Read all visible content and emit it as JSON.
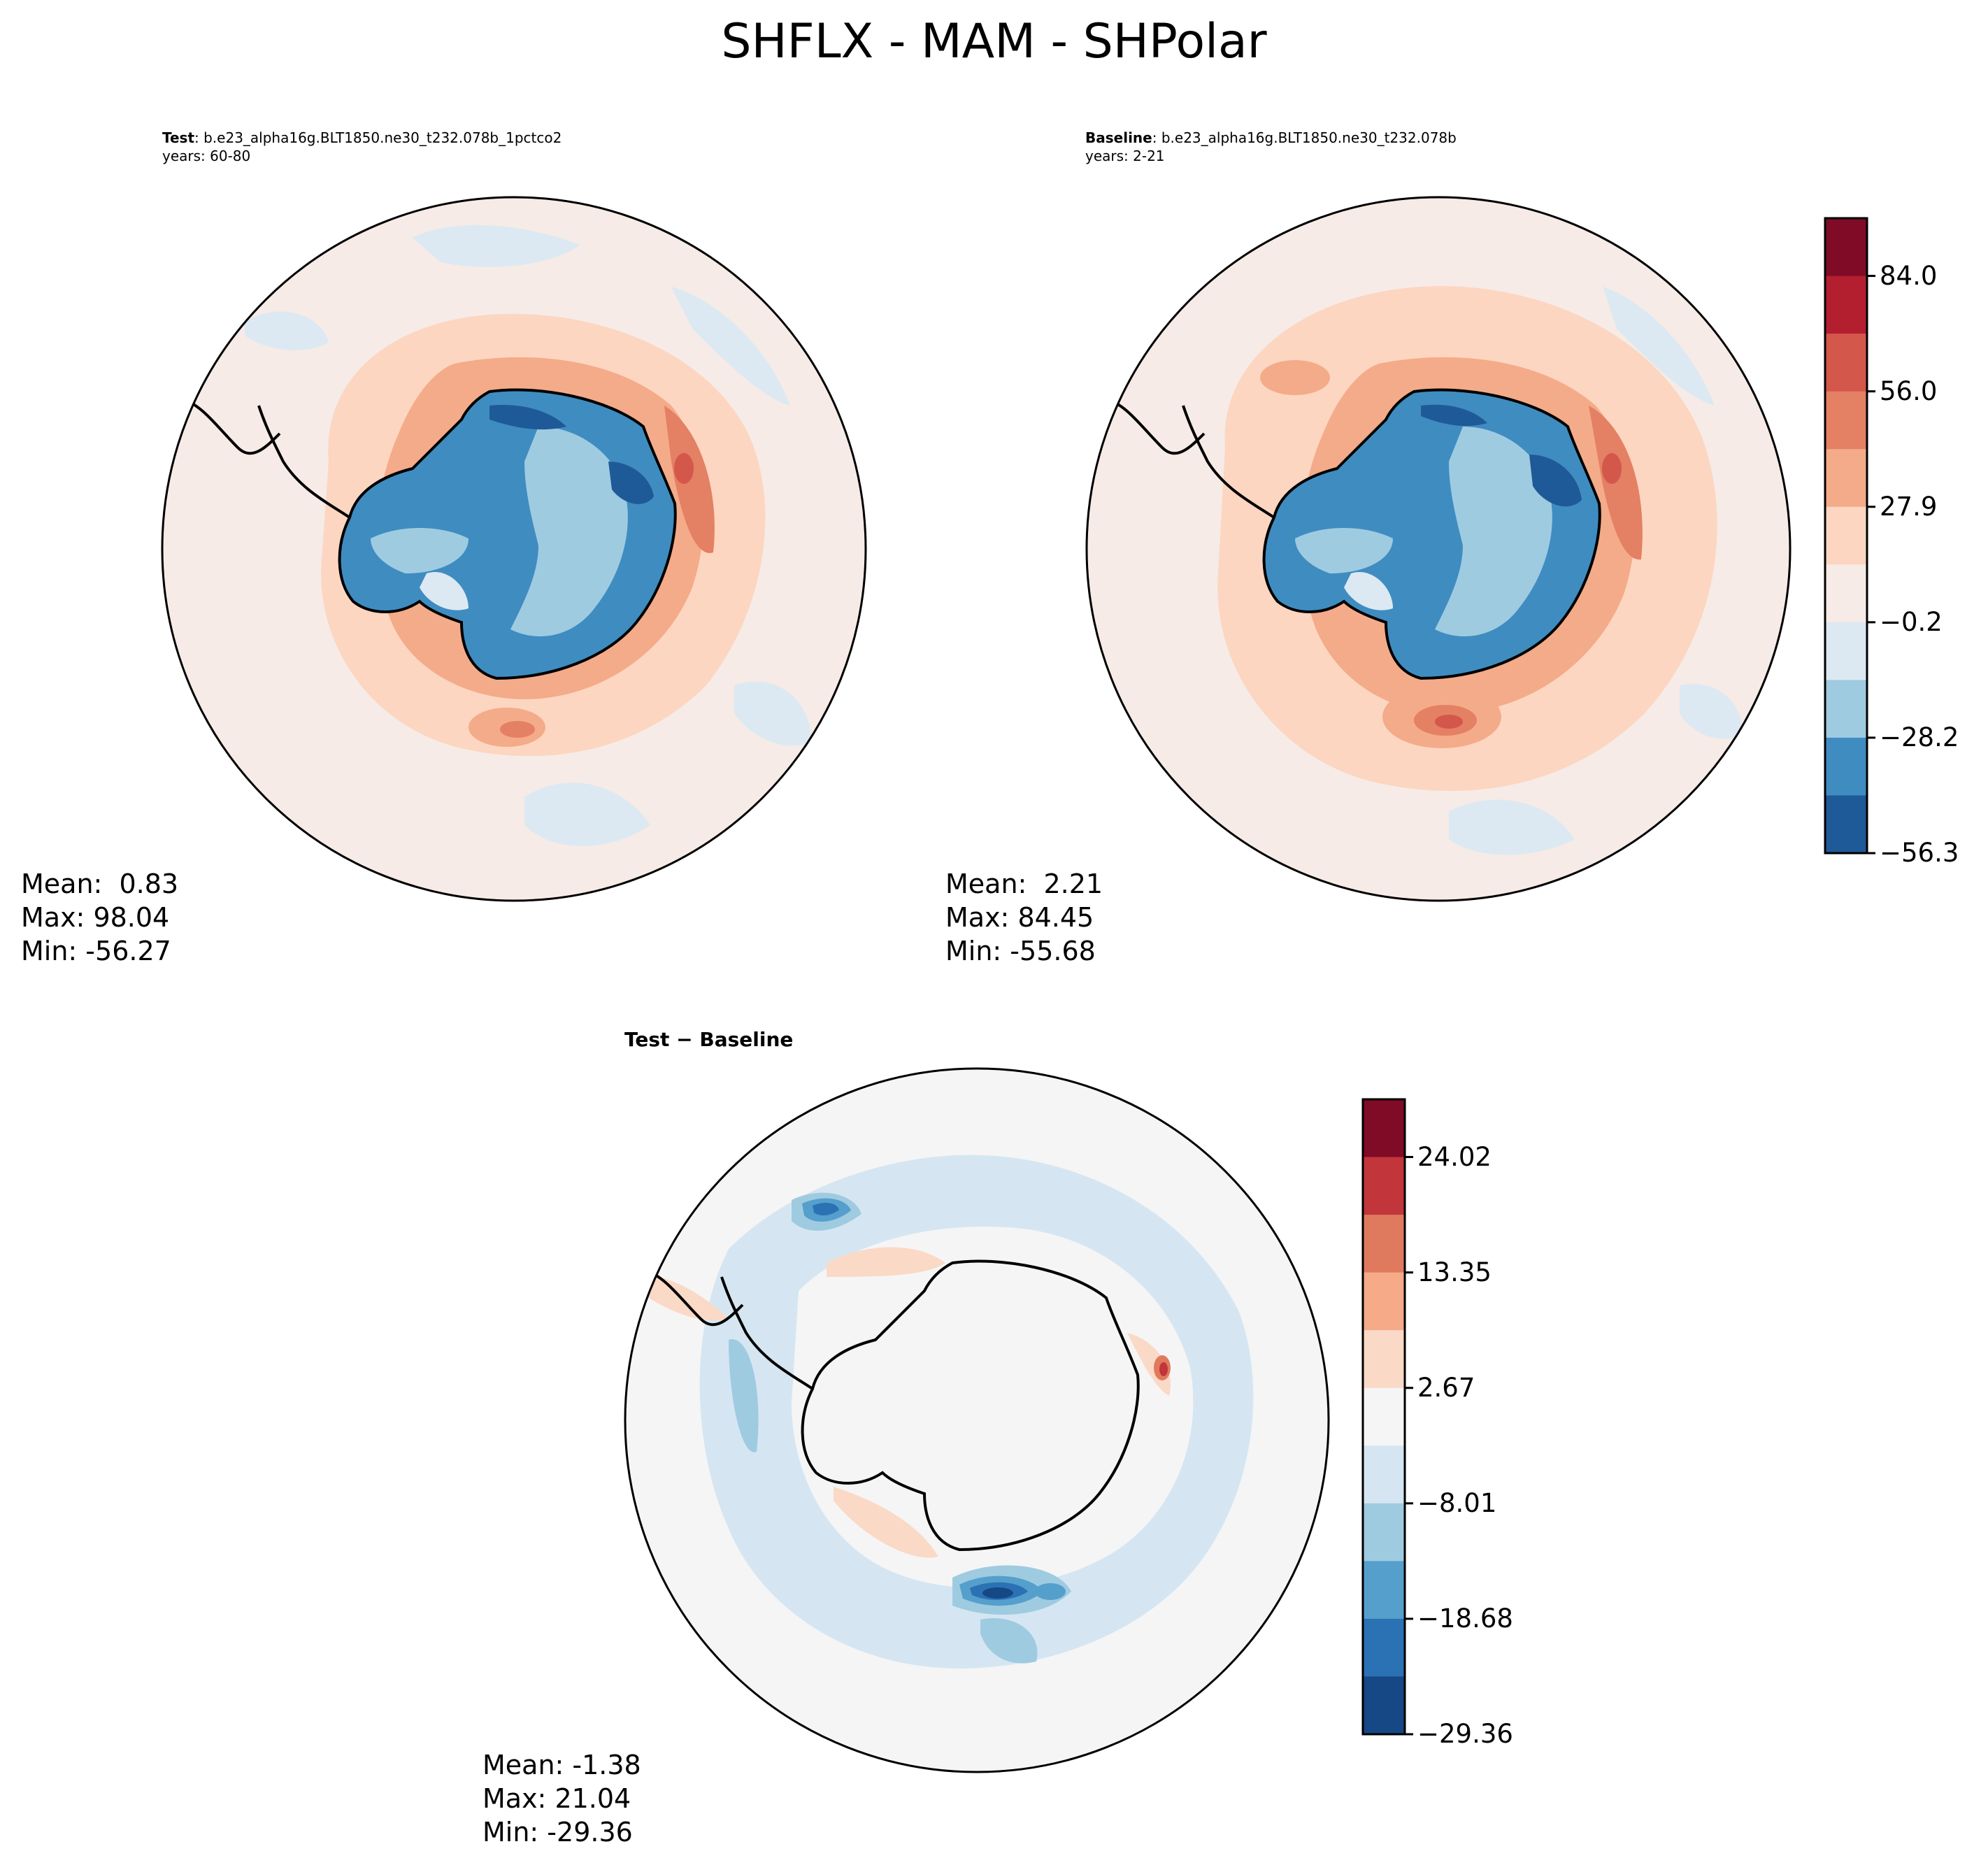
{
  "figure": {
    "title": "SHFLX - MAM - SHPolar"
  },
  "panels": {
    "test": {
      "heading_bold": "Test",
      "heading_rest": ": b.e23_alpha16g.BLT1850.ne30_t232.078b_1pctco2",
      "years": "years: 60-80",
      "stats": {
        "mean": "Mean:  0.83",
        "max": "Max: 98.04",
        "min": "Min: -56.27"
      }
    },
    "baseline": {
      "heading_bold": "Baseline",
      "heading_rest": ": b.e23_alpha16g.BLT1850.ne30_t232.078b",
      "years": "years: 2-21",
      "stats": {
        "mean": "Mean:  2.21",
        "max": "Max: 84.45",
        "min": "Min: -55.68"
      }
    },
    "diff": {
      "heading": "Test − Baseline",
      "stats": {
        "mean": "Mean: -1.38",
        "max": "Max: 21.04",
        "min": "Min: -29.36"
      }
    }
  },
  "colorbars": {
    "main": {
      "ticks": [
        "84.0",
        "56.0",
        "27.9",
        "−0.2",
        "−28.2",
        "−56.3"
      ],
      "colors_top_to_bottom": [
        "#7f0b26",
        "#b31f2f",
        "#d4574b",
        "#e48064",
        "#f4ab89",
        "#fcd6c1",
        "#f6ebe6",
        "#dce9f2",
        "#9fcbe1",
        "#3f8cc1",
        "#1f5a98"
      ]
    },
    "diff": {
      "ticks": [
        "24.02",
        "13.35",
        "2.67",
        "−8.01",
        "−18.68",
        "−29.36"
      ],
      "colors_top_to_bottom": [
        "#7f0b26",
        "#c2353a",
        "#e07a5f",
        "#f6aa88",
        "#fbd9c7",
        "#f5f5f5",
        "#d5e6f2",
        "#9fcbe1",
        "#559fcd",
        "#2b72b4",
        "#154884"
      ]
    }
  },
  "chart_data": {
    "type": "heatmap",
    "variable": "SHFLX",
    "season": "MAM",
    "region": "SHPolar",
    "panels": [
      {
        "name": "Test",
        "mean": 0.83,
        "max": 98.04,
        "min": -56.27,
        "levels": [
          -56.3,
          -28.2,
          -0.2,
          27.9,
          56.0,
          84.0
        ]
      },
      {
        "name": "Baseline",
        "mean": 2.21,
        "max": 84.45,
        "min": -55.68,
        "levels": [
          -56.3,
          -28.2,
          -0.2,
          27.9,
          56.0,
          84.0
        ]
      },
      {
        "name": "Test − Baseline",
        "mean": -1.38,
        "max": 21.04,
        "min": -29.36,
        "levels": [
          -29.36,
          -18.68,
          -8.01,
          2.67,
          13.35,
          24.02
        ]
      }
    ]
  }
}
